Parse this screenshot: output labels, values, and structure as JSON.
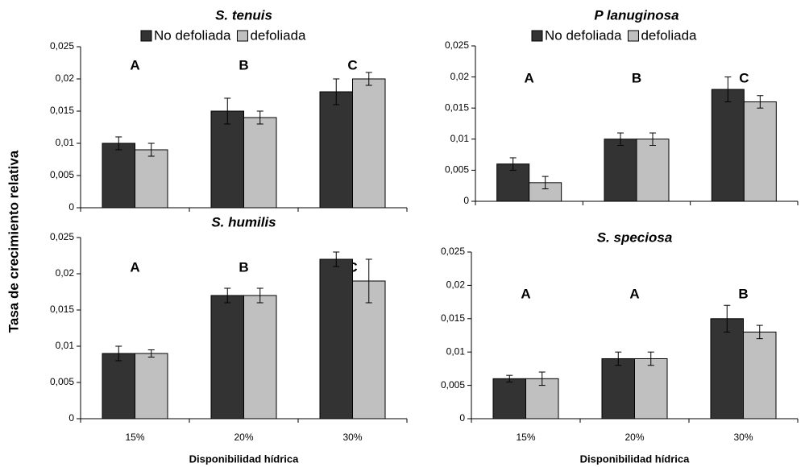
{
  "ylabel": "Tasa de crecimiento relativa",
  "chart_data": [
    {
      "type": "bar",
      "title": "S. tenuis",
      "categories": [
        null,
        null,
        null
      ],
      "annotations": [
        "A",
        "B",
        "C"
      ],
      "series": [
        {
          "name": "No defoliada",
          "color": "#333333",
          "values": [
            0.01,
            0.015,
            0.018
          ],
          "errors": [
            0.001,
            0.002,
            0.002
          ]
        },
        {
          "name": "defoliada",
          "color": "#c0c0c0",
          "values": [
            0.009,
            0.014,
            0.02
          ],
          "errors": [
            0.001,
            0.001,
            0.001
          ]
        }
      ],
      "ylim": [
        0,
        0.025
      ],
      "yticks": [
        0,
        {
          "value": 0.005,
          "label": "0,005"
        },
        {
          "value": 0.01,
          "label": "0,01"
        },
        {
          "value": 0.015,
          "label": "0,015"
        },
        {
          "value": 0.02,
          "label": "0,02"
        },
        {
          "value": 0.025,
          "label": "0,025"
        }
      ]
    },
    {
      "type": "bar",
      "title": "P lanuginosa",
      "categories": [
        null,
        null,
        null
      ],
      "annotations": [
        "A",
        "B",
        "C"
      ],
      "series": [
        {
          "name": "No defoliada",
          "color": "#333333",
          "values": [
            0.006,
            0.01,
            0.018
          ],
          "errors": [
            0.001,
            0.001,
            0.002
          ]
        },
        {
          "name": "defoliada",
          "color": "#c0c0c0",
          "values": [
            0.003,
            0.01,
            0.016
          ],
          "errors": [
            0.001,
            0.001,
            0.001
          ]
        }
      ],
      "ylim": [
        0,
        0.025
      ],
      "yticks": [
        0,
        {
          "value": 0.005,
          "label": "0,005"
        },
        {
          "value": 0.01,
          "label": "0,01"
        },
        {
          "value": 0.015,
          "label": "0,015"
        },
        {
          "value": 0.02,
          "label": "0,02"
        },
        {
          "value": 0.025,
          "label": "0,025"
        }
      ]
    },
    {
      "type": "bar",
      "title": "S. humilis",
      "categories": [
        "15%",
        "20%",
        "30%"
      ],
      "xlabel": "Disponibilidad hídrica",
      "annotations": [
        "A",
        "B",
        "C"
      ],
      "series": [
        {
          "color": "#333333",
          "values": [
            0.009,
            0.017,
            0.022
          ],
          "errors": [
            0.001,
            0.001,
            0.001
          ]
        },
        {
          "color": "#c0c0c0",
          "values": [
            0.009,
            0.017,
            0.019
          ],
          "errors": [
            0.0005,
            0.001,
            0.003
          ]
        }
      ],
      "ylim": [
        0,
        0.025
      ],
      "yticks": [
        0,
        {
          "value": 0.005,
          "label": "0,005"
        },
        {
          "value": 0.01,
          "label": "0,01"
        },
        {
          "value": 0.015,
          "label": "0,015"
        },
        {
          "value": 0.02,
          "label": "0,02"
        },
        {
          "value": 0.025,
          "label": "0,025"
        }
      ]
    },
    {
      "type": "bar",
      "title": "S. speciosa",
      "categories": [
        "15%",
        "20%",
        "30%"
      ],
      "xlabel": "Disponibilidad hídrica",
      "annotations": [
        "A",
        "A",
        "B"
      ],
      "series": [
        {
          "color": "#333333",
          "values": [
            0.006,
            0.009,
            0.015
          ],
          "errors": [
            0.0005,
            0.001,
            0.002
          ]
        },
        {
          "color": "#c0c0c0",
          "values": [
            0.006,
            0.009,
            0.013
          ],
          "errors": [
            0.001,
            0.001,
            0.001
          ]
        }
      ],
      "ylim": [
        0,
        0.025
      ],
      "yticks": [
        0,
        {
          "value": 0.005,
          "label": "0,005"
        },
        {
          "value": 0.01,
          "label": "0,01"
        },
        {
          "value": 0.015,
          "label": "0,015"
        },
        {
          "value": 0.02,
          "label": "0,02"
        },
        {
          "value": 0.025,
          "label": "0,025"
        }
      ]
    }
  ]
}
